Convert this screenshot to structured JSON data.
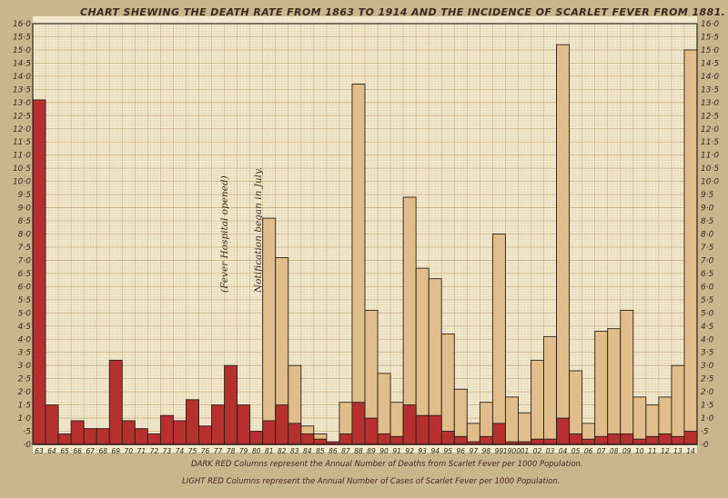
{
  "chart_data": {
    "type": "bar",
    "title": "CHART SHEWING THE DEATH RATE FROM 1863 TO 1914 AND THE INCIDENCE OF SCARLET FEVER FROM 1881.",
    "ylim": [
      0,
      16
    ],
    "y_ticks": [
      "·0",
      "·5",
      "1·0",
      "1·5",
      "2·0",
      "2·5",
      "3·0",
      "3·5",
      "4·0",
      "4·5",
      "5·0",
      "5·5",
      "6·0",
      "6·5",
      "7·0",
      "7·5",
      "8·0",
      "8·5",
      "9·0",
      "9·5",
      "10·0",
      "10·5",
      "11·0",
      "11·5",
      "12·0",
      "12·5",
      "13·0",
      "13·5",
      "14·0",
      "14·5",
      "15·0",
      "15·5",
      "16·0"
    ],
    "categories": [
      "63",
      "64",
      "65",
      "66",
      "67",
      "68",
      "69",
      "70",
      "71",
      "72",
      "73",
      "74",
      "75",
      "76",
      "77",
      "78",
      "79",
      "80",
      "81",
      "82",
      "83",
      "84",
      "85",
      "86",
      "87",
      "88",
      "89",
      "90",
      "91",
      "92",
      "93",
      "94",
      "95",
      "96",
      "97",
      "98",
      "99",
      "1900",
      "01",
      "02",
      "03",
      "04",
      "05",
      "06",
      "07",
      "08",
      "09",
      "10",
      "11",
      "12",
      "13",
      "14"
    ],
    "series": [
      {
        "name": "DARK RED Columns represent the Annual Number of Deaths from Scarlet Fever per 1000 Population.",
        "color": "#b5302f",
        "values": [
          13.1,
          1.5,
          0.4,
          0.9,
          0.6,
          0.6,
          3.2,
          0.9,
          0.6,
          0.4,
          1.1,
          0.9,
          1.7,
          0.7,
          1.5,
          3.0,
          1.5,
          0.5,
          0.9,
          1.5,
          0.8,
          0.4,
          0.2,
          0.1,
          0.4,
          1.6,
          1.0,
          0.4,
          0.3,
          1.5,
          1.1,
          1.1,
          0.5,
          0.3,
          0.1,
          0.3,
          0.8,
          0.1,
          0.1,
          0.2,
          0.2,
          1.0,
          0.4,
          0.2,
          0.3,
          0.4,
          0.4,
          0.2,
          0.3,
          0.4,
          0.3,
          0.5
        ]
      },
      {
        "name": "LIGHT RED Columns represent the Annual Number of Cases of Scarlet Fever per 1000 Population.",
        "color": "#e2bd8c",
        "values": [
          null,
          null,
          null,
          null,
          null,
          null,
          null,
          null,
          null,
          null,
          null,
          null,
          null,
          null,
          null,
          null,
          null,
          null,
          8.6,
          7.1,
          3.0,
          0.7,
          0.4,
          null,
          1.6,
          13.7,
          5.1,
          2.7,
          1.6,
          9.4,
          6.7,
          6.3,
          4.2,
          2.1,
          0.8,
          1.6,
          8.0,
          1.8,
          1.2,
          3.2,
          4.1,
          15.2,
          2.8,
          0.8,
          4.3,
          4.4,
          5.1,
          1.8,
          1.5,
          1.8,
          3.0,
          15.0
        ]
      }
    ],
    "annotations": [
      "(Fever Hospital opened)",
      "Notification began in July."
    ]
  }
}
